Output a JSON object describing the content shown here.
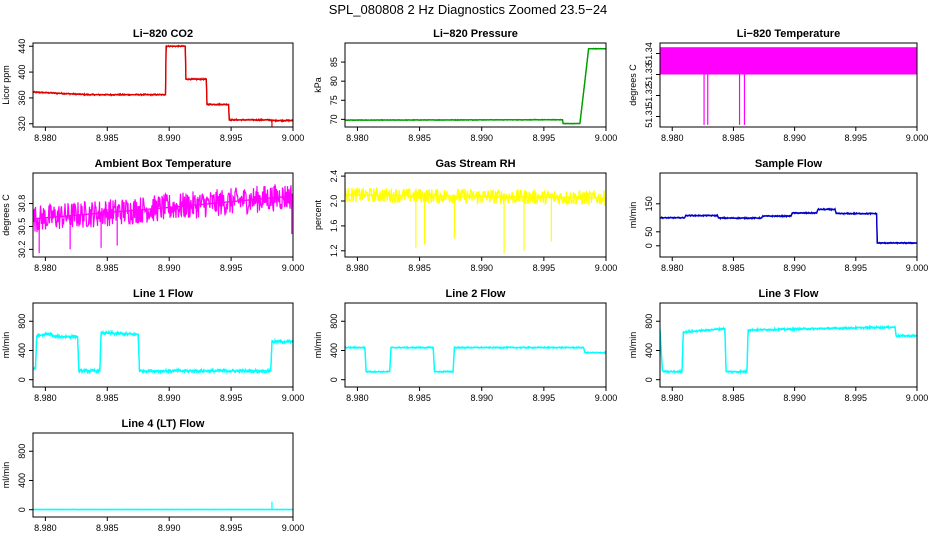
{
  "figure_title": "SPL_080808  2 Hz Diagnostics Zoomed 23.5−24",
  "chart_data": [
    {
      "id": "co2",
      "type": "line",
      "title": "Li−820 CO2",
      "ylabel": "Licor ppm",
      "color": "#e00000",
      "xlim": [
        8.979,
        9.0
      ],
      "ylim": [
        315,
        445
      ],
      "xticks": [
        8.98,
        8.985,
        8.99,
        8.995,
        9.0
      ],
      "xtick_labels": [
        "8.980",
        "8.985",
        "8.990",
        "8.995",
        "9.000"
      ],
      "yticks": [
        320,
        360,
        400,
        440
      ],
      "ytick_labels": [
        "320",
        "360",
        "400",
        "440"
      ],
      "series": [
        {
          "name": "CO2",
          "x": [
            8.979,
            8.9835,
            8.9897,
            8.98975,
            8.9913,
            8.99135,
            8.993,
            8.99305,
            8.9948,
            8.99485,
            8.9982,
            8.99825,
            9.0
          ],
          "y": [
            369,
            365,
            365,
            440,
            440,
            389,
            389,
            350,
            350,
            326,
            326,
            325,
            325
          ],
          "noise": 1.2,
          "spikes": [
            [
              8.9983,
              310
            ]
          ]
        }
      ]
    },
    {
      "id": "pressure",
      "type": "line",
      "title": "Li−820 Pressure",
      "ylabel": "kPa",
      "color": "#00a000",
      "xlim": [
        8.979,
        9.0
      ],
      "ylim": [
        68,
        90
      ],
      "xticks": [
        8.98,
        8.985,
        8.99,
        8.995,
        9.0
      ],
      "xtick_labels": [
        "8.980",
        "8.985",
        "8.990",
        "8.995",
        "9.000"
      ],
      "yticks": [
        70,
        75,
        80,
        85
      ],
      "ytick_labels": [
        "70",
        "75",
        "80",
        "85"
      ],
      "series": [
        {
          "name": "Pressure",
          "x": [
            8.979,
            8.9965,
            8.99655,
            8.9979,
            8.9983,
            8.9986,
            9.0
          ],
          "y": [
            69.8,
            69.9,
            68.9,
            68.9,
            80,
            88.5,
            88.5
          ],
          "noise": 0.1,
          "spikes": []
        }
      ]
    },
    {
      "id": "licor_temp",
      "type": "line",
      "title": "Li−820 Temperature",
      "ylabel": "degrees C",
      "color": "#ff00ff",
      "xlim": [
        8.979,
        9.0
      ],
      "ylim": [
        51.305,
        51.345
      ],
      "xticks": [
        8.98,
        8.985,
        8.99,
        8.995,
        9.0
      ],
      "xtick_labels": [
        "8.980",
        "8.985",
        "8.990",
        "8.995",
        "9.000"
      ],
      "yticks": [
        51.31,
        51.32,
        51.33,
        51.34
      ],
      "ytick_labels": [
        "51.31",
        "51.32",
        "51.33",
        "51.34"
      ],
      "series": [
        {
          "name": "Temperature",
          "x": [
            8.979,
            9.0
          ],
          "y": [
            51.3365,
            51.3365
          ],
          "noise": 0,
          "band": [
            51.33,
            51.343
          ],
          "spikes": [
            [
              8.9826,
              51.306
            ],
            [
              8.9829,
              51.306
            ],
            [
              8.9855,
              51.306
            ],
            [
              8.9859,
              51.306
            ]
          ]
        }
      ]
    },
    {
      "id": "ambient_temp",
      "type": "line",
      "title": "Ambient Box Temperature",
      "ylabel": "degrees C",
      "color": "#ff00ff",
      "xlim": [
        8.979,
        9.0
      ],
      "ylim": [
        30.1,
        31.2
      ],
      "xticks": [
        8.98,
        8.985,
        8.99,
        8.995,
        9.0
      ],
      "xtick_labels": [
        "8.980",
        "8.985",
        "8.990",
        "8.995",
        "9.000"
      ],
      "yticks": [
        30.2,
        30.5,
        30.8
      ],
      "ytick_labels": [
        "30.2",
        "30.5",
        "30.8"
      ],
      "series": [
        {
          "name": "Temperature",
          "x": [
            8.979,
            8.99,
            9.0
          ],
          "y": [
            30.6,
            30.75,
            30.9
          ],
          "noise": 0.18,
          "spikes": [
            [
              8.9795,
              30.15
            ],
            [
              8.982,
              30.2
            ],
            [
              8.9845,
              30.22
            ],
            [
              8.9858,
              30.25
            ],
            [
              8.9999,
              30.4
            ]
          ]
        }
      ]
    },
    {
      "id": "rh",
      "type": "line",
      "title": "Gas Stream RH",
      "ylabel": "percent",
      "color": "#ffff00",
      "xlim": [
        8.979,
        9.0
      ],
      "ylim": [
        1.1,
        2.45
      ],
      "xticks": [
        8.98,
        8.985,
        8.99,
        8.995,
        9.0
      ],
      "xtick_labels": [
        "8.980",
        "8.985",
        "8.990",
        "8.995",
        "9.000"
      ],
      "yticks": [
        1.2,
        1.6,
        2.0,
        2.4
      ],
      "ytick_labels": [
        "1.2",
        "1.6",
        "2.0",
        "2.4"
      ],
      "series": [
        {
          "name": "RH",
          "x": [
            8.979,
            9.0
          ],
          "y": [
            2.1,
            2.05
          ],
          "noise": 0.12,
          "spikes": [
            [
              8.9847,
              1.25
            ],
            [
              8.9854,
              1.3
            ],
            [
              8.9878,
              1.4
            ],
            [
              8.9918,
              1.15
            ],
            [
              8.9934,
              1.2
            ],
            [
              8.9956,
              1.35
            ]
          ]
        }
      ]
    },
    {
      "id": "sample_flow",
      "type": "line",
      "title": "Sample Flow",
      "ylabel": "ml/min",
      "color": "#0000c8",
      "xlim": [
        8.979,
        9.0
      ],
      "ylim": [
        -40,
        260
      ],
      "xticks": [
        8.98,
        8.985,
        8.99,
        8.995,
        9.0
      ],
      "xtick_labels": [
        "8.980",
        "8.985",
        "8.990",
        "8.995",
        "9.000"
      ],
      "yticks": [
        0,
        50,
        150
      ],
      "ytick_labels": [
        "0",
        "50",
        "150"
      ],
      "series": [
        {
          "name": "Flow",
          "x": [
            8.979,
            8.981,
            8.9811,
            8.9837,
            8.9838,
            8.9873,
            8.9874,
            8.9897,
            8.9898,
            8.9918,
            8.9919,
            8.9933,
            8.9934,
            8.9967,
            8.99675,
            9.0
          ],
          "y": [
            100,
            100,
            108,
            108,
            99,
            99,
            106,
            106,
            117,
            117,
            130,
            130,
            115,
            115,
            10,
            10
          ],
          "noise": 2.5,
          "spikes": []
        }
      ]
    },
    {
      "id": "line1",
      "type": "line",
      "title": "Line 1 Flow",
      "ylabel": "ml/min",
      "color": "#00ffff",
      "xlim": [
        8.979,
        9.0
      ],
      "ylim": [
        -100,
        1050
      ],
      "xticks": [
        8.98,
        8.985,
        8.99,
        8.995,
        9.0
      ],
      "xtick_labels": [
        "8.980",
        "8.985",
        "8.990",
        "8.995",
        "9.000"
      ],
      "yticks": [
        0,
        400,
        800
      ],
      "ytick_labels": [
        "0",
        "400",
        "800"
      ],
      "series": [
        {
          "name": "Flow",
          "x": [
            8.979,
            8.9792,
            8.9793,
            8.9805,
            8.9806,
            8.9826,
            8.9827,
            8.9844,
            8.9845,
            8.9875,
            8.9876,
            8.9982,
            8.9983,
            9.0
          ],
          "y": [
            150,
            150,
            600,
            630,
            590,
            590,
            120,
            120,
            640,
            620,
            120,
            120,
            520,
            520
          ],
          "noise": 25,
          "spikes": []
        }
      ]
    },
    {
      "id": "line2",
      "type": "line",
      "title": "Line 2 Flow",
      "ylabel": "ml/min",
      "color": "#00ffff",
      "xlim": [
        8.979,
        9.0
      ],
      "ylim": [
        -100,
        1050
      ],
      "xticks": [
        8.98,
        8.985,
        8.99,
        8.995,
        9.0
      ],
      "xtick_labels": [
        "8.980",
        "8.985",
        "8.990",
        "8.995",
        "9.000"
      ],
      "yticks": [
        0,
        400,
        800
      ],
      "ytick_labels": [
        "0",
        "400",
        "800"
      ],
      "series": [
        {
          "name": "Flow",
          "x": [
            8.979,
            8.9806,
            8.9807,
            8.9826,
            8.9827,
            8.9861,
            8.9862,
            8.9877,
            8.9878,
            8.9982,
            8.9983,
            9.0
          ],
          "y": [
            440,
            440,
            110,
            110,
            440,
            440,
            110,
            110,
            440,
            440,
            370,
            370
          ],
          "noise": 10,
          "spikes": []
        }
      ]
    },
    {
      "id": "line3",
      "type": "line",
      "title": "Line 3 Flow",
      "ylabel": "ml/min",
      "color": "#00ffff",
      "xlim": [
        8.979,
        9.0
      ],
      "ylim": [
        -100,
        1050
      ],
      "xticks": [
        8.98,
        8.985,
        8.99,
        8.995,
        9.0
      ],
      "xtick_labels": [
        "8.980",
        "8.985",
        "8.990",
        "8.995",
        "9.000"
      ],
      "yticks": [
        0,
        400,
        800
      ],
      "ytick_labels": [
        "0",
        "400",
        "800"
      ],
      "series": [
        {
          "name": "Flow",
          "x": [
            8.979,
            8.9792,
            8.9793,
            8.9808,
            8.9809,
            8.9843,
            8.9844,
            8.9861,
            8.9862,
            8.9982,
            8.9983,
            9.0
          ],
          "y": [
            680,
            120,
            110,
            110,
            650,
            700,
            110,
            110,
            680,
            720,
            600,
            600
          ],
          "noise": 15,
          "spikes": []
        }
      ]
    },
    {
      "id": "line4",
      "type": "line",
      "title": "Line 4 (LT) Flow",
      "ylabel": "ml/min",
      "color": "#00ffff",
      "xlim": [
        8.979,
        9.0
      ],
      "ylim": [
        -100,
        1050
      ],
      "xticks": [
        8.98,
        8.985,
        8.99,
        8.995,
        9.0
      ],
      "xtick_labels": [
        "8.980",
        "8.985",
        "8.990",
        "8.995",
        "9.000"
      ],
      "yticks": [
        0,
        400,
        800
      ],
      "ytick_labels": [
        "0",
        "400",
        "800"
      ],
      "series": [
        {
          "name": "Flow",
          "x": [
            8.979,
            9.0
          ],
          "y": [
            2,
            2
          ],
          "noise": 2,
          "spikes": [
            [
              8.9983,
              110
            ]
          ]
        }
      ]
    }
  ]
}
